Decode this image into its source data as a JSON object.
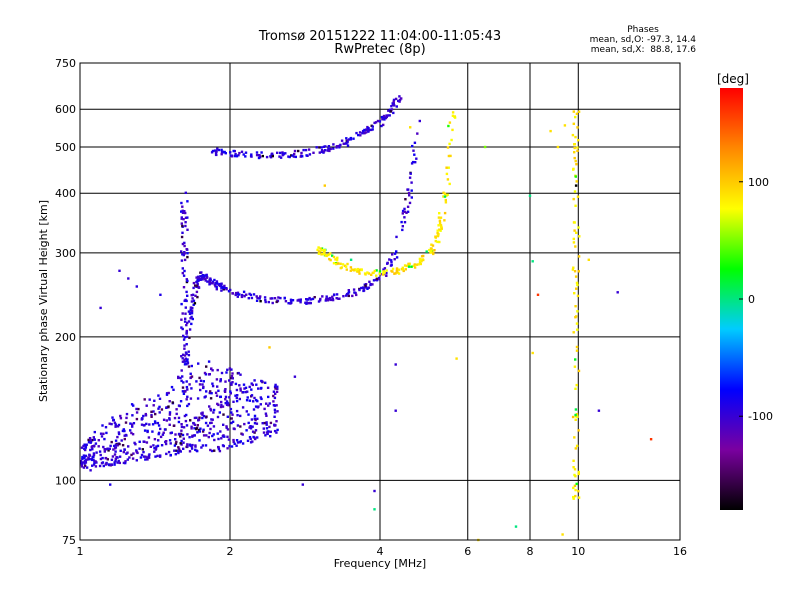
{
  "chart_data": {
    "type": "scatter",
    "title": "Tromsø 20151222 11:04:00-11:05:43",
    "subtitle": "RwPretec (8p)",
    "xlabel": "Frequency [MHz]",
    "ylabel": "Stationary phase Virtual Height [km]",
    "x_scale": "log",
    "y_scale": "log",
    "xlim": [
      1,
      16
    ],
    "ylim": [
      75,
      750
    ],
    "x_ticks": [
      "1",
      "2",
      "4",
      "6",
      "8",
      "10",
      "16"
    ],
    "y_ticks": [
      "75",
      "100",
      "200",
      "300",
      "400",
      "500",
      "600",
      "750"
    ],
    "grid": true,
    "info": {
      "heading": "Phases",
      "line_o": "mean, sd,O: -97.3, 14.4",
      "line_x": "mean, sd,X:  88.8, 17.6"
    },
    "colorbar": {
      "label": "[deg]",
      "range": [
        -180,
        180
      ],
      "ticks": [
        "100",
        "0",
        "-100"
      ],
      "tick_values": [
        100,
        0,
        -100
      ],
      "colors": [
        "#000000",
        "#7a00a0",
        "#0000ff",
        "#00ccff",
        "#00ff00",
        "#ffff00",
        "#ff8800",
        "#ff0000"
      ]
    },
    "traces": [
      {
        "label": "E-layer echo cloud",
        "shape": "cloud",
        "phase": -97,
        "x": [
          1.0,
          1.1,
          1.2,
          1.35,
          1.5,
          1.62,
          1.75,
          1.9,
          2.05,
          2.25,
          2.5
        ],
        "y_low": [
          106,
          107,
          108,
          110,
          112,
          115,
          115,
          115,
          118,
          120,
          125
        ],
        "y_high": [
          118,
          130,
          140,
          150,
          155,
          175,
          180,
          175,
          170,
          165,
          160
        ]
      },
      {
        "label": "F1 cusp O",
        "phase": -97,
        "x": [
          1.62,
          1.65,
          1.68,
          1.72,
          1.76,
          1.82,
          1.9,
          2.0,
          2.2,
          2.5,
          2.8,
          3.1,
          3.4,
          3.7,
          4.0,
          4.3,
          4.6,
          4.8
        ],
        "y": [
          175,
          205,
          235,
          260,
          270,
          262,
          255,
          250,
          242,
          238,
          238,
          240,
          245,
          252,
          265,
          300,
          400,
          600
        ]
      },
      {
        "label": "F1 cusp X",
        "phase": 89,
        "x": [
          3.0,
          3.1,
          3.3,
          3.6,
          4.0,
          4.4,
          4.8,
          5.1,
          5.3,
          5.45,
          5.6
        ],
        "y": [
          305,
          300,
          285,
          275,
          272,
          276,
          288,
          305,
          340,
          420,
          600
        ]
      },
      {
        "label": "Column",
        "phase": -97,
        "x": [
          1.62,
          1.62,
          1.62,
          1.62,
          1.62
        ],
        "y": [
          175,
          220,
          280,
          340,
          400
        ]
      },
      {
        "label": "F2 upper O",
        "phase": -97,
        "x": [
          1.85,
          2.0,
          2.2,
          2.5,
          2.8,
          3.1,
          3.4,
          3.7,
          4.0,
          4.2,
          4.35
        ],
        "y": [
          490,
          485,
          480,
          480,
          485,
          495,
          510,
          535,
          560,
          590,
          630
        ]
      },
      {
        "label": "Vertical streak",
        "phase": 89,
        "x": [
          9.9,
          9.9,
          9.9,
          9.9,
          9.9,
          9.9
        ],
        "y": [
          90,
          120,
          200,
          300,
          450,
          630
        ]
      }
    ],
    "scattered_points": [
      {
        "x": 1.05,
        "y": 105,
        "p": -100
      },
      {
        "x": 1.15,
        "y": 98,
        "p": -90
      },
      {
        "x": 1.25,
        "y": 265,
        "p": -100
      },
      {
        "x": 1.3,
        "y": 255,
        "p": -95
      },
      {
        "x": 1.2,
        "y": 275,
        "p": -100
      },
      {
        "x": 1.45,
        "y": 245,
        "p": -90
      },
      {
        "x": 1.1,
        "y": 230,
        "p": -100
      },
      {
        "x": 2.4,
        "y": 190,
        "p": 100
      },
      {
        "x": 2.7,
        "y": 165,
        "p": -100
      },
      {
        "x": 2.8,
        "y": 98,
        "p": -100
      },
      {
        "x": 3.9,
        "y": 95,
        "p": -100
      },
      {
        "x": 3.9,
        "y": 87,
        "p": 0
      },
      {
        "x": 3.1,
        "y": 415,
        "p": 100
      },
      {
        "x": 4.3,
        "y": 175,
        "p": -100
      },
      {
        "x": 4.3,
        "y": 140,
        "p": -100
      },
      {
        "x": 5.7,
        "y": 180,
        "p": 90
      },
      {
        "x": 6.5,
        "y": 500,
        "p": 50
      },
      {
        "x": 6.3,
        "y": 75,
        "p": 90
      },
      {
        "x": 7.5,
        "y": 80,
        "p": 0
      },
      {
        "x": 8.0,
        "y": 395,
        "p": 0
      },
      {
        "x": 8.1,
        "y": 288,
        "p": 0
      },
      {
        "x": 8.3,
        "y": 245,
        "p": 160
      },
      {
        "x": 8.8,
        "y": 540,
        "p": 90
      },
      {
        "x": 9.1,
        "y": 500,
        "p": 90
      },
      {
        "x": 9.4,
        "y": 555,
        "p": 90
      },
      {
        "x": 9.3,
        "y": 77,
        "p": 90
      },
      {
        "x": 9.9,
        "y": 415,
        "p": -180
      },
      {
        "x": 10.5,
        "y": 290,
        "p": 90
      },
      {
        "x": 11.0,
        "y": 140,
        "p": -100
      },
      {
        "x": 12.0,
        "y": 248,
        "p": -100
      },
      {
        "x": 14.0,
        "y": 122,
        "p": 160
      },
      {
        "x": 8.1,
        "y": 185,
        "p": 90
      },
      {
        "x": 4.6,
        "y": 550,
        "p": 90
      },
      {
        "x": 3.5,
        "y": 290,
        "p": 0
      }
    ]
  }
}
